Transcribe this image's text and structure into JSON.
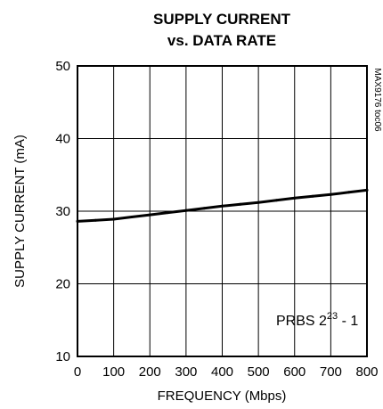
{
  "chart_data": {
    "type": "line",
    "title_line1": "SUPPLY CURRENT",
    "title_line2": "vs. DATA RATE",
    "xlabel": "FREQUENCY (Mbps)",
    "ylabel": "SUPPLY CURRENT (mA)",
    "figure_code": "MAX9176 toc06",
    "annotation": {
      "base": "PRBS 2",
      "sup": "23",
      "tail": " - 1"
    },
    "xlim": [
      0,
      800
    ],
    "ylim": [
      10,
      50
    ],
    "x_ticks": [
      "0",
      "100",
      "200",
      "300",
      "400",
      "500",
      "600",
      "700",
      "800"
    ],
    "y_ticks": [
      "10",
      "20",
      "30",
      "40",
      "50"
    ],
    "grid": true,
    "series": [
      {
        "x": [
          0,
          50,
          100,
          150,
          200,
          250,
          300,
          350,
          400,
          450,
          500,
          550,
          600,
          650,
          700,
          750,
          800
        ],
        "values": [
          28.6,
          28.75,
          28.9,
          29.2,
          29.5,
          29.8,
          30.1,
          30.4,
          30.7,
          30.95,
          31.2,
          31.5,
          31.8,
          32.05,
          32.3,
          32.6,
          32.9
        ]
      }
    ]
  }
}
